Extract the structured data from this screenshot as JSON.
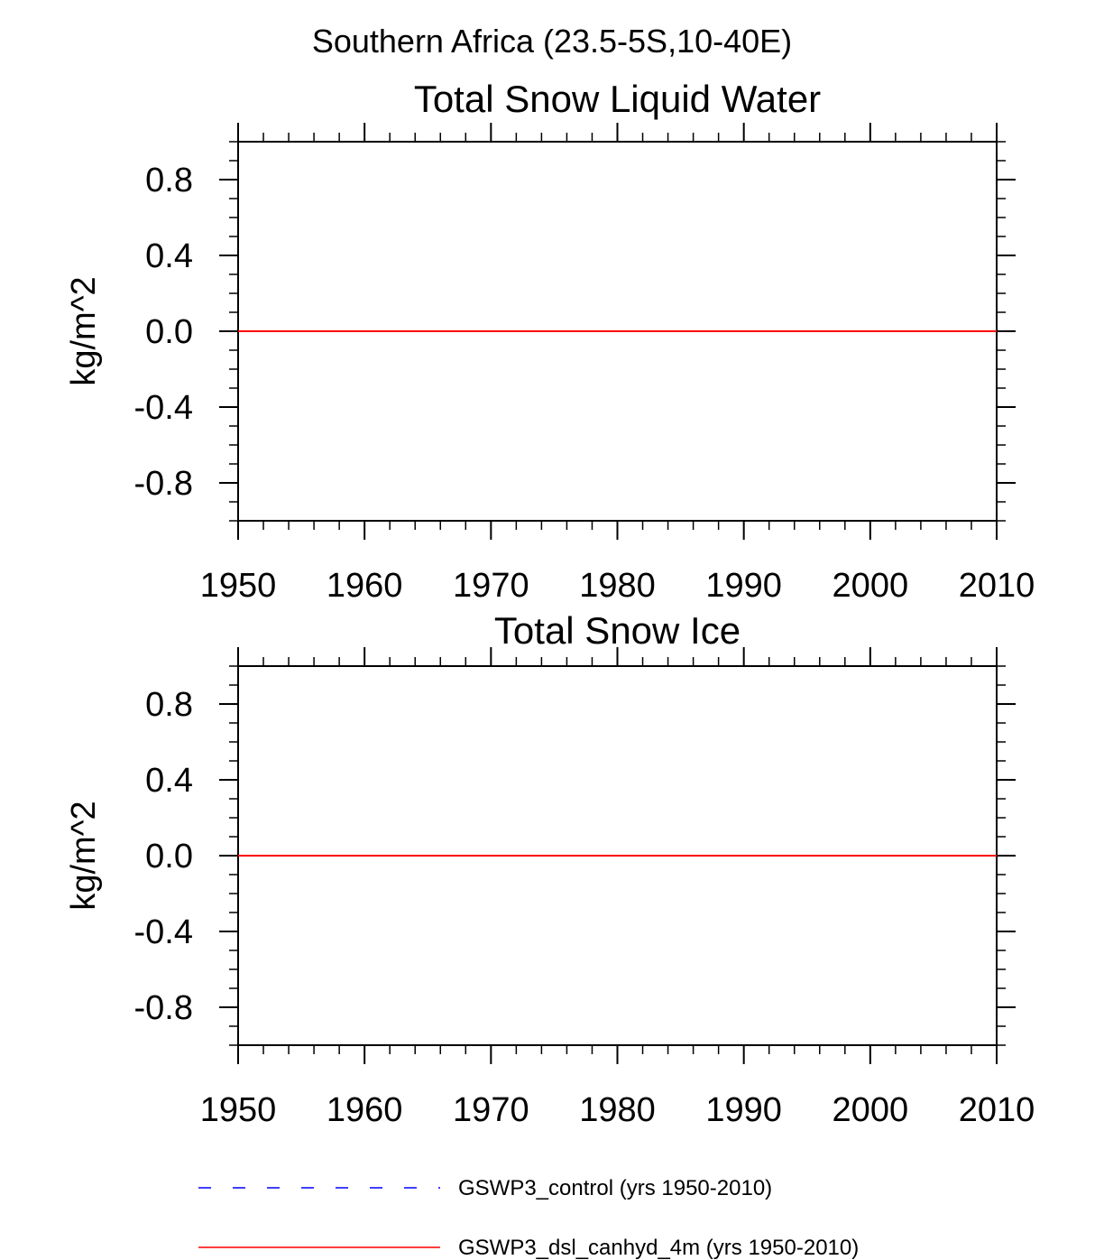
{
  "figure": {
    "title": "Southern Africa (23.5-5S,10-40E)"
  },
  "chart_data": [
    {
      "type": "line",
      "title": "Total Snow Liquid Water",
      "xlabel": "",
      "ylabel": "kg/m^2",
      "xlim": [
        1950,
        2010
      ],
      "ylim": [
        -1.0,
        1.0
      ],
      "x_ticks": [
        1950,
        1960,
        1970,
        1980,
        1990,
        2000,
        2010
      ],
      "y_ticks": [
        -0.8,
        -0.4,
        0.0,
        0.4,
        0.8
      ],
      "y_tick_labels": [
        "-0.8",
        "-0.4",
        "0.0",
        "0.4",
        "0.8"
      ],
      "grid": false,
      "series": [
        {
          "name": "GSWP3_control (yrs 1950-2010)",
          "color": "#0000ff",
          "dash": "dashed",
          "x": [
            1950,
            2010
          ],
          "y": [
            0.0,
            0.0
          ]
        },
        {
          "name": "GSWP3_dsl_canhyd_4m (yrs 1950-2010)",
          "color": "#ff0000",
          "dash": "solid",
          "x": [
            1950,
            2010
          ],
          "y": [
            0.0,
            0.0
          ]
        }
      ]
    },
    {
      "type": "line",
      "title": "Total Snow Ice",
      "xlabel": "",
      "ylabel": "kg/m^2",
      "xlim": [
        1950,
        2010
      ],
      "ylim": [
        -1.0,
        1.0
      ],
      "x_ticks": [
        1950,
        1960,
        1970,
        1980,
        1990,
        2000,
        2010
      ],
      "y_ticks": [
        -0.8,
        -0.4,
        0.0,
        0.4,
        0.8
      ],
      "y_tick_labels": [
        "-0.8",
        "-0.4",
        "0.0",
        "0.4",
        "0.8"
      ],
      "grid": false,
      "series": [
        {
          "name": "GSWP3_control (yrs 1950-2010)",
          "color": "#0000ff",
          "dash": "dashed",
          "x": [
            1950,
            2010
          ],
          "y": [
            0.0,
            0.0
          ]
        },
        {
          "name": "GSWP3_dsl_canhyd_4m (yrs 1950-2010)",
          "color": "#ff0000",
          "dash": "solid",
          "x": [
            1950,
            2010
          ],
          "y": [
            0.0,
            0.0
          ]
        }
      ]
    }
  ],
  "legend": {
    "placement": "bottom",
    "entries": [
      {
        "label": "GSWP3_control (yrs 1950-2010)",
        "color": "#0000ff",
        "dash": "dashed"
      },
      {
        "label": "GSWP3_dsl_canhyd_4m (yrs 1950-2010)",
        "color": "#ff0000",
        "dash": "solid"
      }
    ]
  }
}
